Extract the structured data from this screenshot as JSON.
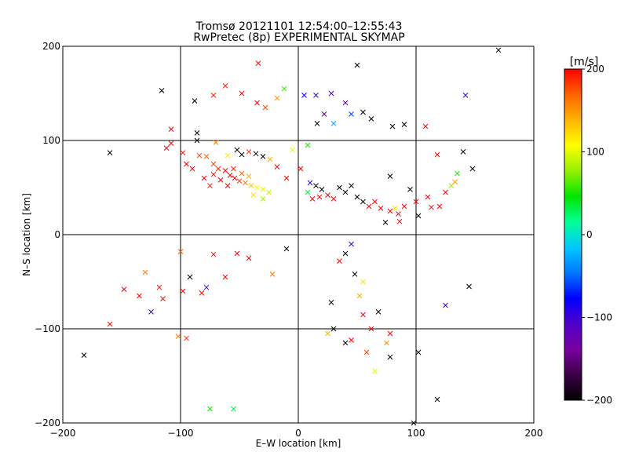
{
  "chart_data": {
    "type": "scatter",
    "title": "Tromsø 20121101 12:54:00–12:55:43",
    "subtitle": "RwPretec (8p) EXPERIMENTAL SKYMAP",
    "xlabel": "E–W location [km]",
    "ylabel": "N–S location [km]",
    "xlim": [
      -200,
      200
    ],
    "ylim": [
      -200,
      200
    ],
    "x_ticks": [
      "−200",
      "−100",
      "0",
      "100",
      "200"
    ],
    "y_ticks": [
      "−200",
      "−100",
      "0",
      "100",
      "200"
    ],
    "x_tick_values": [
      -200,
      -100,
      0,
      100,
      200
    ],
    "y_tick_values": [
      -200,
      -100,
      0,
      100,
      200
    ],
    "grid": true,
    "colorbar": {
      "label": "[m/s]",
      "range": [
        -200,
        200
      ],
      "ticks": [
        "200",
        "100",
        "0",
        "−100",
        "−200"
      ],
      "tick_values": [
        200,
        100,
        0,
        -100,
        -200
      ],
      "colors": [
        "#000000",
        "#3c0046",
        "#7800a0",
        "#5000c8",
        "#0000ff",
        "#0078ff",
        "#00c8ff",
        "#00ff96",
        "#00e600",
        "#96f000",
        "#ffff00",
        "#ffb400",
        "#ff6400",
        "#ff0000"
      ]
    },
    "points": [
      {
        "x": -116,
        "y": 153,
        "v": -210,
        "m": "x"
      },
      {
        "x": -88,
        "y": 142,
        "v": -210,
        "m": "x"
      },
      {
        "x": -72,
        "y": 148,
        "v": 190,
        "m": "x"
      },
      {
        "x": -62,
        "y": 158,
        "v": 190,
        "m": "x"
      },
      {
        "x": -48,
        "y": 150,
        "v": 200,
        "m": "x"
      },
      {
        "x": -35,
        "y": 140,
        "v": 200,
        "m": "x"
      },
      {
        "x": -28,
        "y": 135,
        "v": 180,
        "m": "x"
      },
      {
        "x": -34,
        "y": 182,
        "v": 200,
        "m": "x"
      },
      {
        "x": -18,
        "y": 145,
        "v": 150,
        "m": "x"
      },
      {
        "x": -12,
        "y": 155,
        "v": 60,
        "m": "x"
      },
      {
        "x": 5,
        "y": 148,
        "v": -80,
        "m": "x"
      },
      {
        "x": 15,
        "y": 148,
        "v": -90,
        "m": "x"
      },
      {
        "x": 28,
        "y": 150,
        "v": -110,
        "m": "x"
      },
      {
        "x": 40,
        "y": 140,
        "v": -120,
        "m": "x"
      },
      {
        "x": 45,
        "y": 128,
        "v": -60,
        "m": "x"
      },
      {
        "x": 55,
        "y": 130,
        "v": -200,
        "m": "x"
      },
      {
        "x": 62,
        "y": 123,
        "v": -200,
        "m": "x"
      },
      {
        "x": 22,
        "y": 128,
        "v": -150,
        "m": "x"
      },
      {
        "x": 16,
        "y": 118,
        "v": -200,
        "m": "x"
      },
      {
        "x": 30,
        "y": 118,
        "v": -30,
        "m": "x"
      },
      {
        "x": 50,
        "y": 180,
        "v": -200,
        "m": "x"
      },
      {
        "x": 80,
        "y": 115,
        "v": -200,
        "m": "x"
      },
      {
        "x": 90,
        "y": 117,
        "v": -200,
        "m": "x"
      },
      {
        "x": 108,
        "y": 115,
        "v": 200,
        "m": "x"
      },
      {
        "x": 142,
        "y": 148,
        "v": -100,
        "m": "x"
      },
      {
        "x": -160,
        "y": 87,
        "v": -210,
        "m": "x"
      },
      {
        "x": -112,
        "y": 92,
        "v": 200,
        "m": "x"
      },
      {
        "x": -108,
        "y": 97,
        "v": 200,
        "m": "x"
      },
      {
        "x": -98,
        "y": 87,
        "v": 190,
        "m": "x"
      },
      {
        "x": -84,
        "y": 84,
        "v": 180,
        "m": "x"
      },
      {
        "x": -78,
        "y": 83,
        "v": 170,
        "m": "x"
      },
      {
        "x": -72,
        "y": 75,
        "v": 180,
        "m": "x"
      },
      {
        "x": -68,
        "y": 70,
        "v": 190,
        "m": "x"
      },
      {
        "x": -62,
        "y": 68,
        "v": 200,
        "m": "x"
      },
      {
        "x": -58,
        "y": 63,
        "v": 200,
        "m": "x"
      },
      {
        "x": -54,
        "y": 60,
        "v": 200,
        "m": "x"
      },
      {
        "x": -50,
        "y": 57,
        "v": 180,
        "m": "x"
      },
      {
        "x": -45,
        "y": 55,
        "v": 160,
        "m": "x"
      },
      {
        "x": -40,
        "y": 52,
        "v": 130,
        "m": "x"
      },
      {
        "x": -35,
        "y": 50,
        "v": 110,
        "m": "x"
      },
      {
        "x": -30,
        "y": 48,
        "v": 100,
        "m": "x"
      },
      {
        "x": -25,
        "y": 45,
        "v": 90,
        "m": "x"
      },
      {
        "x": -60,
        "y": 52,
        "v": 200,
        "m": "x"
      },
      {
        "x": -66,
        "y": 58,
        "v": 200,
        "m": "x"
      },
      {
        "x": -72,
        "y": 64,
        "v": 200,
        "m": "x"
      },
      {
        "x": -55,
        "y": 70,
        "v": 190,
        "m": "x"
      },
      {
        "x": -48,
        "y": 65,
        "v": 170,
        "m": "x"
      },
      {
        "x": -42,
        "y": 62,
        "v": 140,
        "m": "x"
      },
      {
        "x": -38,
        "y": 42,
        "v": 120,
        "m": "x"
      },
      {
        "x": -30,
        "y": 38,
        "v": 80,
        "m": "x"
      },
      {
        "x": -80,
        "y": 60,
        "v": 200,
        "m": "x"
      },
      {
        "x": -75,
        "y": 52,
        "v": 190,
        "m": "x"
      },
      {
        "x": -90,
        "y": 70,
        "v": 200,
        "m": "x"
      },
      {
        "x": -95,
        "y": 75,
        "v": 200,
        "m": "x"
      },
      {
        "x": -86,
        "y": 100,
        "v": -200,
        "m": "x"
      },
      {
        "x": -70,
        "y": 98,
        "v": 160,
        "m": "x"
      },
      {
        "x": -60,
        "y": 84,
        "v": 120,
        "m": "x"
      },
      {
        "x": -52,
        "y": 90,
        "v": -200,
        "m": "x"
      },
      {
        "x": -48,
        "y": 85,
        "v": -200,
        "m": "x"
      },
      {
        "x": -42,
        "y": 88,
        "v": 180,
        "m": "x"
      },
      {
        "x": -36,
        "y": 86,
        "v": -200,
        "m": "x"
      },
      {
        "x": -30,
        "y": 83,
        "v": -200,
        "m": "x"
      },
      {
        "x": -24,
        "y": 80,
        "v": 140,
        "m": "x"
      },
      {
        "x": -18,
        "y": 72,
        "v": 200,
        "m": "x"
      },
      {
        "x": -10,
        "y": 60,
        "v": 200,
        "m": "x"
      },
      {
        "x": -5,
        "y": 90,
        "v": 100,
        "m": "x"
      },
      {
        "x": 8,
        "y": 95,
        "v": 50,
        "m": "x"
      },
      {
        "x": 2,
        "y": 70,
        "v": 200,
        "m": "x"
      },
      {
        "x": 10,
        "y": 55,
        "v": -100,
        "m": "x"
      },
      {
        "x": 15,
        "y": 52,
        "v": -200,
        "m": "x"
      },
      {
        "x": 20,
        "y": 48,
        "v": -200,
        "m": "x"
      },
      {
        "x": 25,
        "y": 42,
        "v": 200,
        "m": "x"
      },
      {
        "x": 30,
        "y": 38,
        "v": 200,
        "m": "x"
      },
      {
        "x": 18,
        "y": 40,
        "v": 200,
        "m": "x"
      },
      {
        "x": 12,
        "y": 38,
        "v": 200,
        "m": "x"
      },
      {
        "x": 8,
        "y": 45,
        "v": 30,
        "m": "x"
      },
      {
        "x": 35,
        "y": 50,
        "v": -200,
        "m": "x"
      },
      {
        "x": 40,
        "y": 45,
        "v": -200,
        "m": "x"
      },
      {
        "x": 45,
        "y": 52,
        "v": -200,
        "m": "x"
      },
      {
        "x": 50,
        "y": 40,
        "v": -200,
        "m": "x"
      },
      {
        "x": 55,
        "y": 35,
        "v": -200,
        "m": "x"
      },
      {
        "x": 60,
        "y": 30,
        "v": 200,
        "m": "x"
      },
      {
        "x": 65,
        "y": 35,
        "v": 200,
        "m": "x"
      },
      {
        "x": 70,
        "y": 28,
        "v": 200,
        "m": "x"
      },
      {
        "x": 78,
        "y": 25,
        "v": 200,
        "m": "x"
      },
      {
        "x": 85,
        "y": 22,
        "v": 200,
        "m": "x"
      },
      {
        "x": 90,
        "y": 30,
        "v": 200,
        "m": "x"
      },
      {
        "x": 100,
        "y": 35,
        "v": 200,
        "m": "x"
      },
      {
        "x": 110,
        "y": 40,
        "v": 200,
        "m": "x"
      },
      {
        "x": 120,
        "y": 30,
        "v": 200,
        "m": "x"
      },
      {
        "x": 125,
        "y": 45,
        "v": 200,
        "m": "x"
      },
      {
        "x": 130,
        "y": 52,
        "v": 80,
        "m": "x"
      },
      {
        "x": 135,
        "y": 65,
        "v": 50,
        "m": "x"
      },
      {
        "x": 148,
        "y": 70,
        "v": -210,
        "m": "x"
      },
      {
        "x": 118,
        "y": 85,
        "v": 200,
        "m": "x"
      },
      {
        "x": 140,
        "y": 88,
        "v": -200,
        "m": "x"
      },
      {
        "x": 78,
        "y": 62,
        "v": -200,
        "m": "x"
      },
      {
        "x": 95,
        "y": 48,
        "v": -200,
        "m": "x"
      },
      {
        "x": 102,
        "y": 20,
        "v": -200,
        "m": "x"
      },
      {
        "x": 113,
        "y": 29,
        "v": 200,
        "m": "x"
      },
      {
        "x": 133,
        "y": 56,
        "v": 150,
        "m": "x"
      },
      {
        "x": 82,
        "y": 28,
        "v": 120,
        "m": "x"
      },
      {
        "x": 74,
        "y": 13,
        "v": -200,
        "m": "x"
      },
      {
        "x": 86,
        "y": 14,
        "v": 200,
        "m": "x"
      },
      {
        "x": -130,
        "y": -40,
        "v": 160,
        "m": "x"
      },
      {
        "x": -135,
        "y": -65,
        "v": 200,
        "m": "x"
      },
      {
        "x": -115,
        "y": -68,
        "v": 200,
        "m": "x"
      },
      {
        "x": -118,
        "y": -56,
        "v": 200,
        "m": "x"
      },
      {
        "x": -148,
        "y": -58,
        "v": 200,
        "m": "x"
      },
      {
        "x": -125,
        "y": -82,
        "v": -100,
        "m": "x"
      },
      {
        "x": -160,
        "y": -95,
        "v": 200,
        "m": "x"
      },
      {
        "x": -182,
        "y": -128,
        "v": -210,
        "m": "x"
      },
      {
        "x": -102,
        "y": -108,
        "v": 160,
        "m": "x"
      },
      {
        "x": -95,
        "y": -110,
        "v": 180,
        "m": "x"
      },
      {
        "x": -98,
        "y": -60,
        "v": 200,
        "m": "x"
      },
      {
        "x": -92,
        "y": -45,
        "v": -200,
        "m": "x"
      },
      {
        "x": -82,
        "y": -62,
        "v": 200,
        "m": "x"
      },
      {
        "x": -78,
        "y": -56,
        "v": -100,
        "m": "x"
      },
      {
        "x": -72,
        "y": -21,
        "v": 200,
        "m": "x"
      },
      {
        "x": -62,
        "y": -45,
        "v": 200,
        "m": "x"
      },
      {
        "x": -52,
        "y": -20,
        "v": 200,
        "m": "x"
      },
      {
        "x": -42,
        "y": -25,
        "v": 200,
        "m": "x"
      },
      {
        "x": -22,
        "y": -42,
        "v": 160,
        "m": "x"
      },
      {
        "x": -100,
        "y": -18,
        "v": 170,
        "m": "x"
      },
      {
        "x": -75,
        "y": -185,
        "v": 50,
        "m": "x"
      },
      {
        "x": -55,
        "y": -185,
        "v": 30,
        "m": "x"
      },
      {
        "x": -10,
        "y": -15,
        "v": -200,
        "m": "x"
      },
      {
        "x": 25,
        "y": -105,
        "v": 140,
        "m": "x"
      },
      {
        "x": 30,
        "y": -100,
        "v": -200,
        "m": "x"
      },
      {
        "x": 40,
        "y": -115,
        "v": -200,
        "m": "x"
      },
      {
        "x": 45,
        "y": -112,
        "v": 200,
        "m": "x"
      },
      {
        "x": 55,
        "y": -85,
        "v": 200,
        "m": "x"
      },
      {
        "x": 62,
        "y": -100,
        "v": 200,
        "m": "x"
      },
      {
        "x": 68,
        "y": -82,
        "v": -200,
        "m": "x"
      },
      {
        "x": 75,
        "y": -115,
        "v": 150,
        "m": "x"
      },
      {
        "x": 78,
        "y": -105,
        "v": 200,
        "m": "x"
      },
      {
        "x": 52,
        "y": -65,
        "v": 140,
        "m": "x"
      },
      {
        "x": 55,
        "y": -50,
        "v": 120,
        "m": "x"
      },
      {
        "x": 48,
        "y": -42,
        "v": -200,
        "m": "x"
      },
      {
        "x": 45,
        "y": -10,
        "v": -100,
        "m": "x"
      },
      {
        "x": 40,
        "y": -20,
        "v": -200,
        "m": "x"
      },
      {
        "x": 125,
        "y": -75,
        "v": -100,
        "m": "x"
      },
      {
        "x": 145,
        "y": -55,
        "v": -200,
        "m": "x"
      },
      {
        "x": 118,
        "y": -175,
        "v": -210,
        "m": "x"
      },
      {
        "x": 98,
        "y": -200,
        "v": -210,
        "m": "x"
      },
      {
        "x": 102,
        "y": -125,
        "v": -200,
        "m": "x"
      },
      {
        "x": 65,
        "y": -145,
        "v": 100,
        "m": "x"
      },
      {
        "x": 35,
        "y": -28,
        "v": 200,
        "m": "x"
      },
      {
        "x": 28,
        "y": -72,
        "v": -200,
        "m": "x"
      },
      {
        "x": 58,
        "y": -125,
        "v": 180,
        "m": "x"
      },
      {
        "x": 78,
        "y": -130,
        "v": -200,
        "m": "x"
      },
      {
        "x": -108,
        "y": 112,
        "v": 200,
        "m": "x"
      },
      {
        "x": -86,
        "y": 108,
        "v": -200,
        "m": "x"
      },
      {
        "x": 170,
        "y": 196,
        "v": -210,
        "m": "x"
      }
    ]
  }
}
